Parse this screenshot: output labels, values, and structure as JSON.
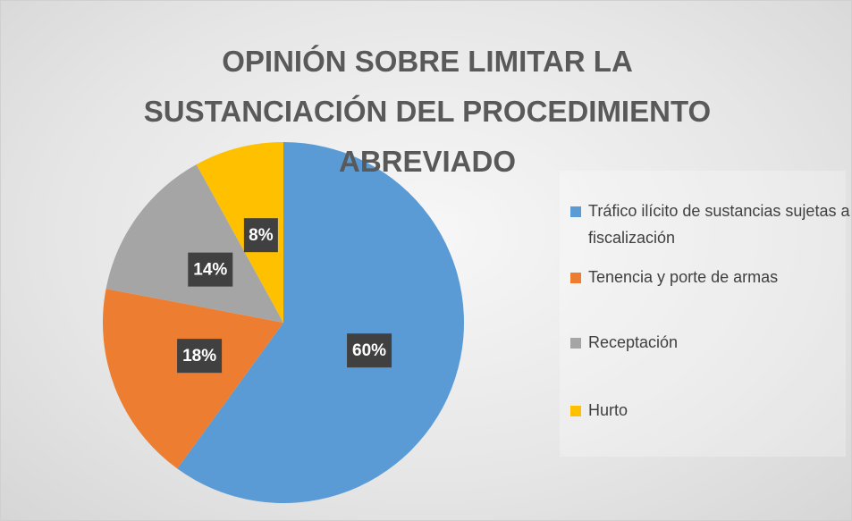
{
  "chart_data": {
    "type": "pie",
    "title": "OPINIÓN SOBRE LIMITAR LA SUSTANCIACIÓN DEL PROCEDIMIENTO ABREVIADO",
    "categories": [
      "Tráfico ilícito de sustancias sujetas a fiscalización",
      "Tenencia y porte de armas",
      "Receptación",
      "Hurto"
    ],
    "values": [
      60,
      18,
      14,
      8
    ],
    "value_labels": [
      "60%",
      "18%",
      "14%",
      "8%"
    ],
    "colors": [
      "#5b9bd5",
      "#ed7d31",
      "#a5a5a5",
      "#ffc000"
    ],
    "legend": "right"
  }
}
